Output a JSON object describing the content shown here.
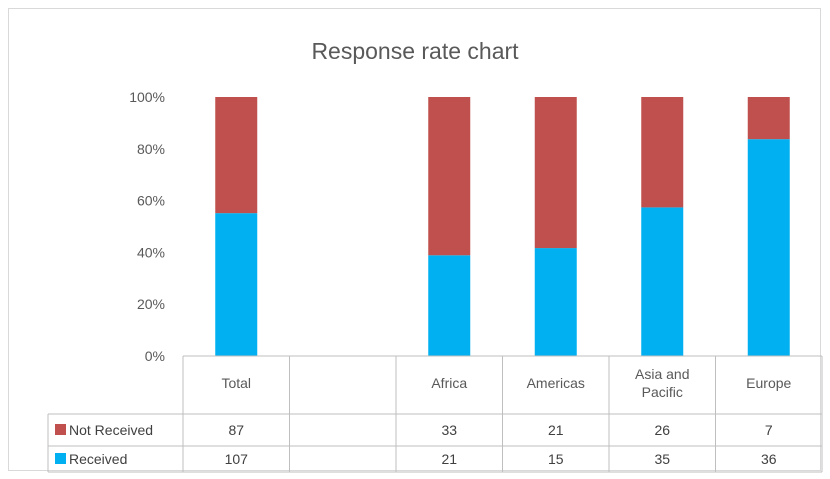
{
  "chart_data": {
    "type": "bar",
    "stacked": "percent",
    "title": "Response rate chart",
    "categories": [
      "Total",
      "",
      "Africa",
      "Americas",
      "Asia and Pacific",
      "Europe"
    ],
    "category_lines": [
      [
        "Total"
      ],
      [
        ""
      ],
      [
        "Africa"
      ],
      [
        "Americas"
      ],
      [
        "Asia and",
        "Pacific"
      ],
      [
        "Europe"
      ]
    ],
    "series": [
      {
        "name": "Not Received",
        "color": "#c0504d",
        "values": [
          87,
          null,
          33,
          21,
          26,
          7
        ]
      },
      {
        "name": "Received",
        "color": "#00b0f0",
        "values": [
          107,
          null,
          21,
          15,
          35,
          36
        ]
      }
    ],
    "y_ticks": [
      "0%",
      "20%",
      "40%",
      "60%",
      "80%",
      "100%"
    ],
    "ylim": [
      0,
      100
    ],
    "grid": false,
    "legend": "data-table"
  }
}
